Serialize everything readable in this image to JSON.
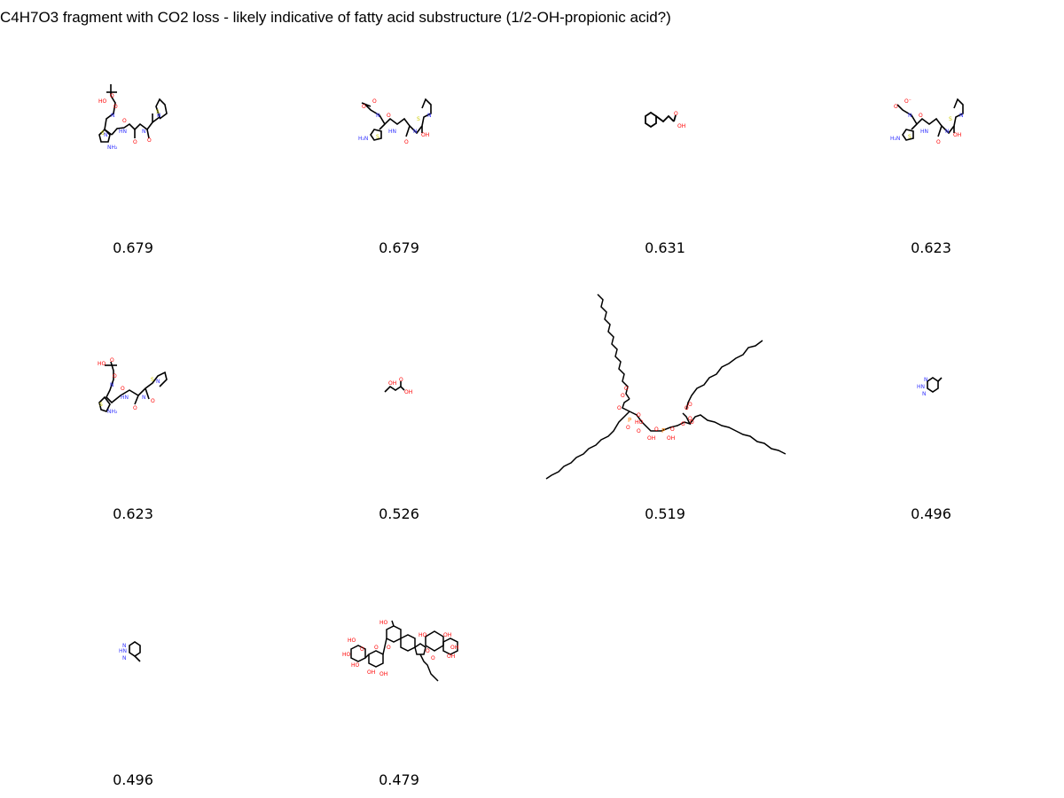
{
  "title": "C4H7O3 fragment with CO2 loss - likely indicative of fatty acid substructure (1/2-OH-propionic acid?)",
  "items": [
    {
      "score": "0.679",
      "molecule": "cephalosporin-pyridinium"
    },
    {
      "score": "0.679",
      "molecule": "cephalosporin-pyridinium"
    },
    {
      "score": "0.631",
      "molecule": "cinnamic-acid"
    },
    {
      "score": "0.623",
      "molecule": "cephalosporin-pyridinium"
    },
    {
      "score": "0.623",
      "molecule": "cephalosporin-pyridinium"
    },
    {
      "score": "0.526",
      "molecule": "hydroxybutyric-acid"
    },
    {
      "score": "0.519",
      "molecule": "cardiolipin"
    },
    {
      "score": "0.496",
      "molecule": "methylbenzotriazole"
    },
    {
      "score": "0.496",
      "molecule": "methylbenzotriazole"
    },
    {
      "score": "0.479",
      "molecule": "triterpene-glycoside"
    }
  ],
  "colors": {
    "bond": "#000000",
    "oxygen": "#ff0000",
    "nitrogen": "#3333ff",
    "sulfur": "#cccc00",
    "phosphorus": "#ff8000"
  }
}
